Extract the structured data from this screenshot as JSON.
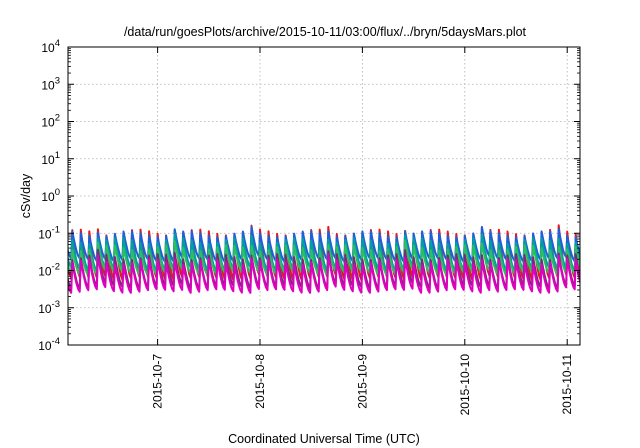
{
  "chart_data": {
    "type": "line",
    "title": "/data/run/goesPlots/archive/2015-10-11/03:00/flux/../bryn/5daysMars.plot",
    "xlabel": "Coordinated Universal Time (UTC)",
    "ylabel": "cSv/day",
    "yscale": "log",
    "ylim": [
      0.0001,
      10000
    ],
    "y_ticks": [
      {
        "base": "10",
        "exp": "-4"
      },
      {
        "base": "10",
        "exp": "-3"
      },
      {
        "base": "10",
        "exp": "-2"
      },
      {
        "base": "10",
        "exp": "-1"
      },
      {
        "base": "10",
        "exp": "0"
      },
      {
        "base": "10",
        "exp": "1"
      },
      {
        "base": "10",
        "exp": "2"
      },
      {
        "base": "10",
        "exp": "3"
      },
      {
        "base": "10",
        "exp": "4"
      }
    ],
    "xlim": [
      "2015-10-06T03:00",
      "2015-10-11T03:00"
    ],
    "x_ticks": [
      "2015-10-7",
      "2015-10-8",
      "2015-10-9",
      "2015-10-10",
      "2015-10-11"
    ],
    "grid": true,
    "pattern": {
      "description": "sawtooth: sharp rise then decay, repeating",
      "period_hours": 2.0,
      "first_peak": "2015-10-06T04:00"
    },
    "series": [
      {
        "color": "#e41a1c",
        "peak": 0.105,
        "trough": 0.0062
      },
      {
        "color": "#1f5fd8",
        "peak": 0.095,
        "trough": 0.019
      },
      {
        "color": "#00a0a0",
        "peak": 0.062,
        "trough": 0.011
      },
      {
        "color": "#2bbf5f",
        "peak": 0.04,
        "trough": 0.0085
      },
      {
        "color": "#7a2a7a",
        "peak": 0.023,
        "trough": 0.0036
      },
      {
        "color": "#e000c0",
        "peak": 0.017,
        "trough": 0.0028
      }
    ]
  }
}
